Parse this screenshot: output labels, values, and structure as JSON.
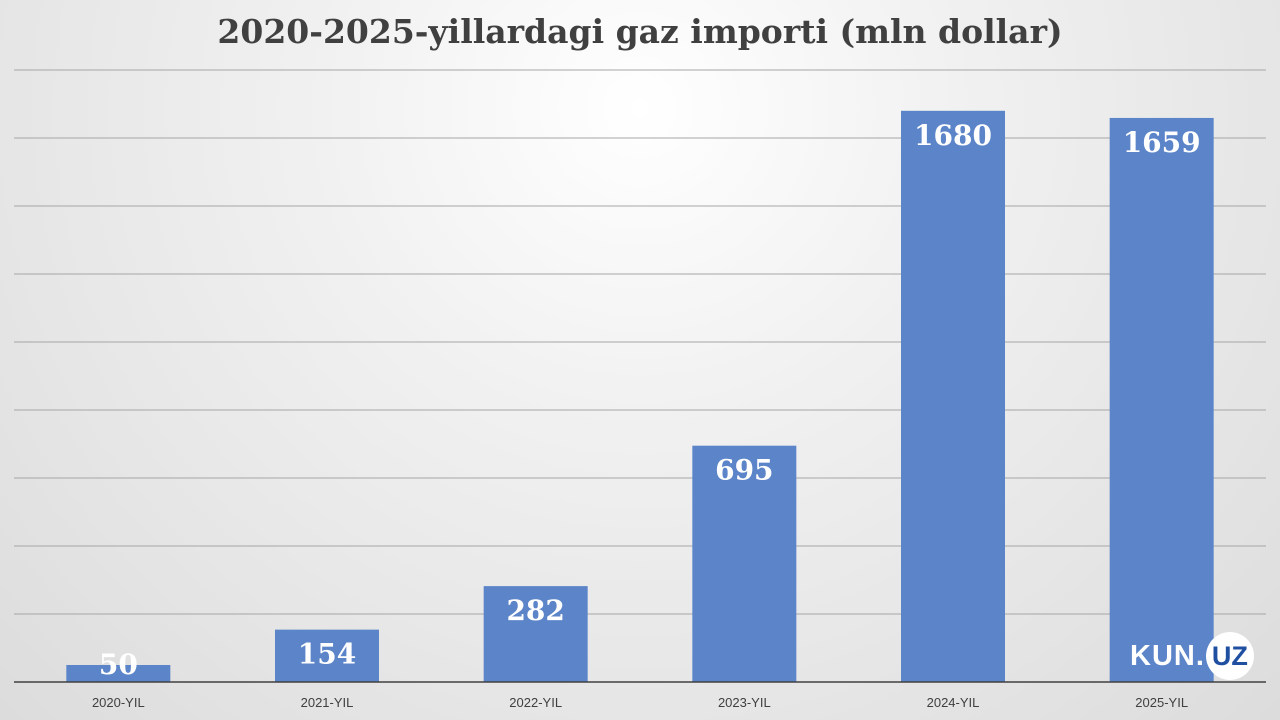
{
  "chart_data": {
    "type": "bar",
    "title": "2020-2025-yillardagi gaz importi (mln dollar)",
    "categories": [
      "2020-YIL",
      "2021-YIL",
      "2022-YIL",
      "2023-YIL",
      "2024-YIL",
      "2025-YIL"
    ],
    "values": [
      50,
      154,
      282,
      695,
      1680,
      1659
    ],
    "ylim": [
      0,
      1800
    ],
    "gridlines": true,
    "bar_color": "#5b84c9",
    "label_color": "#ffffff"
  },
  "logo": {
    "left": "KUN",
    "dot": ".",
    "right": "UZ"
  }
}
